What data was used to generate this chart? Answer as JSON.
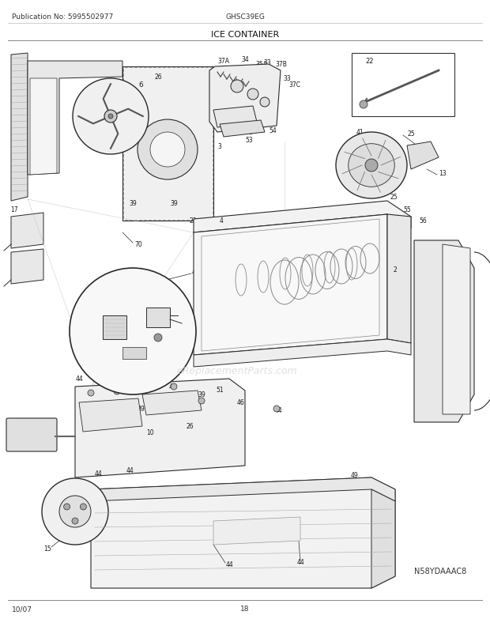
{
  "title": "ICE CONTAINER",
  "model": "GHSC39EG",
  "publication": "Publication No: 5995502977",
  "date": "10/07",
  "page": "18",
  "diagram_id": "N58YDAAAC8",
  "bg_color": "#ffffff",
  "text_color": "#1a1a1a",
  "line_color": "#2a2a2a",
  "header_line_color": "#888888",
  "watermark": "eReplacementParts.com"
}
